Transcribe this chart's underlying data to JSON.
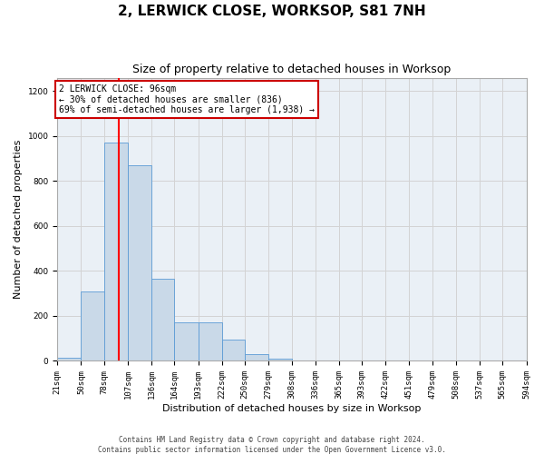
{
  "title": "2, LERWICK CLOSE, WORKSOP, S81 7NH",
  "subtitle": "Size of property relative to detached houses in Worksop",
  "xlabel": "Distribution of detached houses by size in Worksop",
  "ylabel": "Number of detached properties",
  "footer_line1": "Contains HM Land Registry data © Crown copyright and database right 2024.",
  "footer_line2": "Contains public sector information licensed under the Open Government Licence v3.0.",
  "bin_edges": [
    21,
    50,
    78,
    107,
    136,
    164,
    193,
    222,
    250,
    279,
    308,
    336,
    365,
    393,
    422,
    451,
    479,
    508,
    537,
    565,
    594
  ],
  "bar_heights": [
    15,
    310,
    970,
    870,
    365,
    170,
    170,
    95,
    30,
    8,
    2,
    1,
    0,
    0,
    0,
    0,
    0,
    0,
    1,
    0
  ],
  "bar_color": "#c9d9e8",
  "bar_edge_color": "#5b9bd5",
  "grid_color": "#d3d3d3",
  "red_line_x": 96,
  "annotation_text_line1": "2 LERWICK CLOSE: 96sqm",
  "annotation_text_line2": "← 30% of detached houses are smaller (836)",
  "annotation_text_line3": "69% of semi-detached houses are larger (1,938) →",
  "annotation_box_facecolor": "#ffffff",
  "annotation_box_edgecolor": "#cc0000",
  "axes_facecolor": "#eaf0f6",
  "ylim": [
    0,
    1260
  ],
  "yticks": [
    0,
    200,
    400,
    600,
    800,
    1000,
    1200
  ],
  "title_fontsize": 11,
  "subtitle_fontsize": 9,
  "tick_label_fontsize": 6.5,
  "ylabel_fontsize": 8,
  "xlabel_fontsize": 8,
  "annotation_fontsize": 7,
  "footer_fontsize": 5.5
}
